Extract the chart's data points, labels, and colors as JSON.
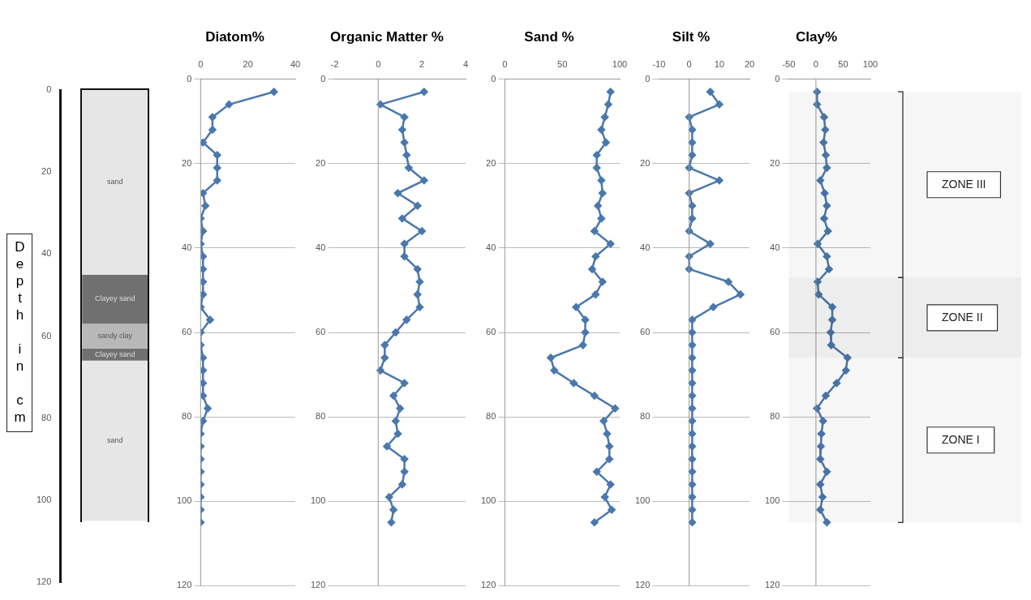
{
  "chart_data": [
    {
      "type": "bar",
      "stacked": true,
      "categories": [
        null
      ],
      "ylabel": "Depth in cm",
      "ylim": [
        120,
        0
      ],
      "yticks": [
        0,
        20,
        40,
        60,
        80,
        100,
        120
      ],
      "tick_labels": "y",
      "series": [
        {
          "name": "sand",
          "color": "#e6e6e6",
          "values": [
            45
          ]
        },
        {
          "name": "Clayey sand",
          "color": "#707070",
          "values": [
            12
          ]
        },
        {
          "name": "sandy clay",
          "color": "#b8b8b8",
          "values": [
            6
          ]
        },
        {
          "name": "Clayey sand",
          "color": "#707070",
          "values": [
            3
          ]
        },
        {
          "name": "sand",
          "color": "#e6e6e6",
          "values": [
            39
          ]
        }
      ]
    },
    {
      "type": "line",
      "title": "Diatom%",
      "xlim": [
        0,
        40
      ],
      "xticks": [
        0,
        20,
        40
      ],
      "ylim": [
        120,
        0
      ],
      "yticks": [
        0,
        20,
        40,
        60,
        80,
        100,
        120
      ],
      "grid": "y",
      "marker": "diamond",
      "series": [
        {
          "color": "#4a78ad",
          "x": [
            31,
            12,
            5,
            5,
            1,
            7,
            7,
            7,
            1,
            2,
            0,
            1,
            0,
            1,
            1,
            1,
            1,
            0,
            4,
            0,
            0,
            1,
            1,
            1,
            1,
            3,
            1,
            0,
            0,
            0,
            0,
            0,
            0,
            0,
            0
          ],
          "values": [
            3,
            6,
            9,
            12,
            15,
            18,
            21,
            24,
            27,
            30,
            33,
            36,
            39,
            42,
            45,
            48,
            51,
            54,
            57,
            60,
            63,
            66,
            69,
            72,
            75,
            78,
            81,
            84,
            87,
            90,
            93,
            96,
            99,
            102,
            105
          ]
        }
      ]
    },
    {
      "type": "line",
      "title": "Organic Matter %",
      "xlim": [
        -2,
        4
      ],
      "xticks": [
        -2,
        0,
        2,
        4
      ],
      "ylim": [
        120,
        0
      ],
      "yticks": [
        0,
        20,
        40,
        60,
        80,
        100,
        120
      ],
      "grid": "y",
      "marker": "diamond",
      "series": [
        {
          "color": "#4a78ad",
          "x": [
            2.1,
            0.1,
            1.2,
            1.1,
            1.2,
            1.3,
            1.4,
            2.1,
            0.9,
            1.8,
            1.1,
            2.0,
            1.2,
            1.2,
            1.8,
            1.9,
            1.8,
            1.9,
            1.3,
            0.8,
            0.3,
            0.3,
            0.1,
            1.2,
            0.7,
            1.0,
            0.8,
            0.9,
            0.4,
            1.2,
            1.2,
            1.1,
            0.5,
            0.7,
            0.6
          ],
          "values": [
            3,
            6,
            9,
            12,
            15,
            18,
            21,
            24,
            27,
            30,
            33,
            36,
            39,
            42,
            45,
            48,
            51,
            54,
            57,
            60,
            63,
            66,
            69,
            72,
            75,
            78,
            81,
            84,
            87,
            90,
            93,
            96,
            99,
            102,
            105
          ]
        }
      ]
    },
    {
      "type": "line",
      "title": "Sand %",
      "xlim": [
        0,
        100
      ],
      "xticks": [
        0,
        50,
        100
      ],
      "ylim": [
        120,
        0
      ],
      "yticks": [
        0,
        20,
        40,
        60,
        80,
        100,
        120
      ],
      "grid": "y",
      "marker": "diamond",
      "series": [
        {
          "color": "#4a78ad",
          "x": [
            92,
            90,
            87,
            84,
            88,
            80,
            80,
            84,
            85,
            81,
            84,
            78,
            92,
            79,
            76,
            85,
            79,
            62,
            70,
            70,
            68,
            40,
            43,
            60,
            78,
            96,
            86,
            89,
            91,
            91,
            80,
            92,
            87,
            93,
            78
          ],
          "values": [
            3,
            6,
            9,
            12,
            15,
            18,
            21,
            24,
            27,
            30,
            33,
            36,
            39,
            42,
            45,
            48,
            51,
            54,
            57,
            60,
            63,
            66,
            69,
            72,
            75,
            78,
            81,
            84,
            87,
            90,
            93,
            96,
            99,
            102,
            105
          ]
        }
      ]
    },
    {
      "type": "line",
      "title": "Silt %",
      "xlim": [
        -10,
        20
      ],
      "xticks": [
        -10,
        0,
        10,
        20
      ],
      "ylim": [
        120,
        0
      ],
      "yticks": [
        0,
        20,
        40,
        60,
        80,
        100,
        120
      ],
      "grid": "y",
      "marker": "diamond",
      "series": [
        {
          "color": "#4a78ad",
          "x": [
            7,
            10,
            0,
            1,
            1,
            1,
            0,
            10,
            0,
            1,
            1,
            0,
            7,
            0,
            0,
            13,
            17,
            8,
            1,
            1,
            1,
            1,
            1,
            1,
            1,
            1,
            1,
            1,
            1,
            1,
            1,
            1,
            1,
            1,
            1
          ],
          "values": [
            3,
            6,
            9,
            12,
            15,
            18,
            21,
            24,
            27,
            30,
            33,
            36,
            39,
            42,
            45,
            48,
            51,
            54,
            57,
            60,
            63,
            66,
            69,
            72,
            75,
            78,
            81,
            84,
            87,
            90,
            93,
            96,
            99,
            102,
            105
          ]
        }
      ]
    },
    {
      "type": "line",
      "title": "Clay%",
      "xlim": [
        -50,
        100
      ],
      "xticks": [
        -50,
        0,
        50,
        100
      ],
      "ylim": [
        120,
        0
      ],
      "yticks": [
        0,
        20,
        40,
        60,
        80,
        100,
        120
      ],
      "grid": "y",
      "marker": "diamond",
      "bands": [
        {
          "axis": "y",
          "from": 3,
          "to": 47,
          "label": "ZONE III"
        },
        {
          "axis": "y",
          "from": 47,
          "to": 66,
          "label": "ZONE II"
        },
        {
          "axis": "y",
          "from": 66,
          "to": 105,
          "label": "ZONE I"
        }
      ],
      "series": [
        {
          "color": "#4a78ad",
          "x": [
            2,
            2,
            15,
            17,
            14,
            18,
            20,
            8,
            16,
            20,
            15,
            22,
            3,
            20,
            24,
            3,
            5,
            30,
            30,
            27,
            28,
            58,
            55,
            38,
            18,
            2,
            13,
            10,
            9,
            8,
            20,
            8,
            12,
            8,
            20
          ],
          "values": [
            3,
            6,
            9,
            12,
            15,
            18,
            21,
            24,
            27,
            30,
            33,
            36,
            39,
            42,
            45,
            48,
            51,
            54,
            57,
            60,
            63,
            66,
            69,
            72,
            75,
            78,
            81,
            84,
            87,
            90,
            93,
            96,
            99,
            102,
            105
          ]
        }
      ]
    }
  ]
}
